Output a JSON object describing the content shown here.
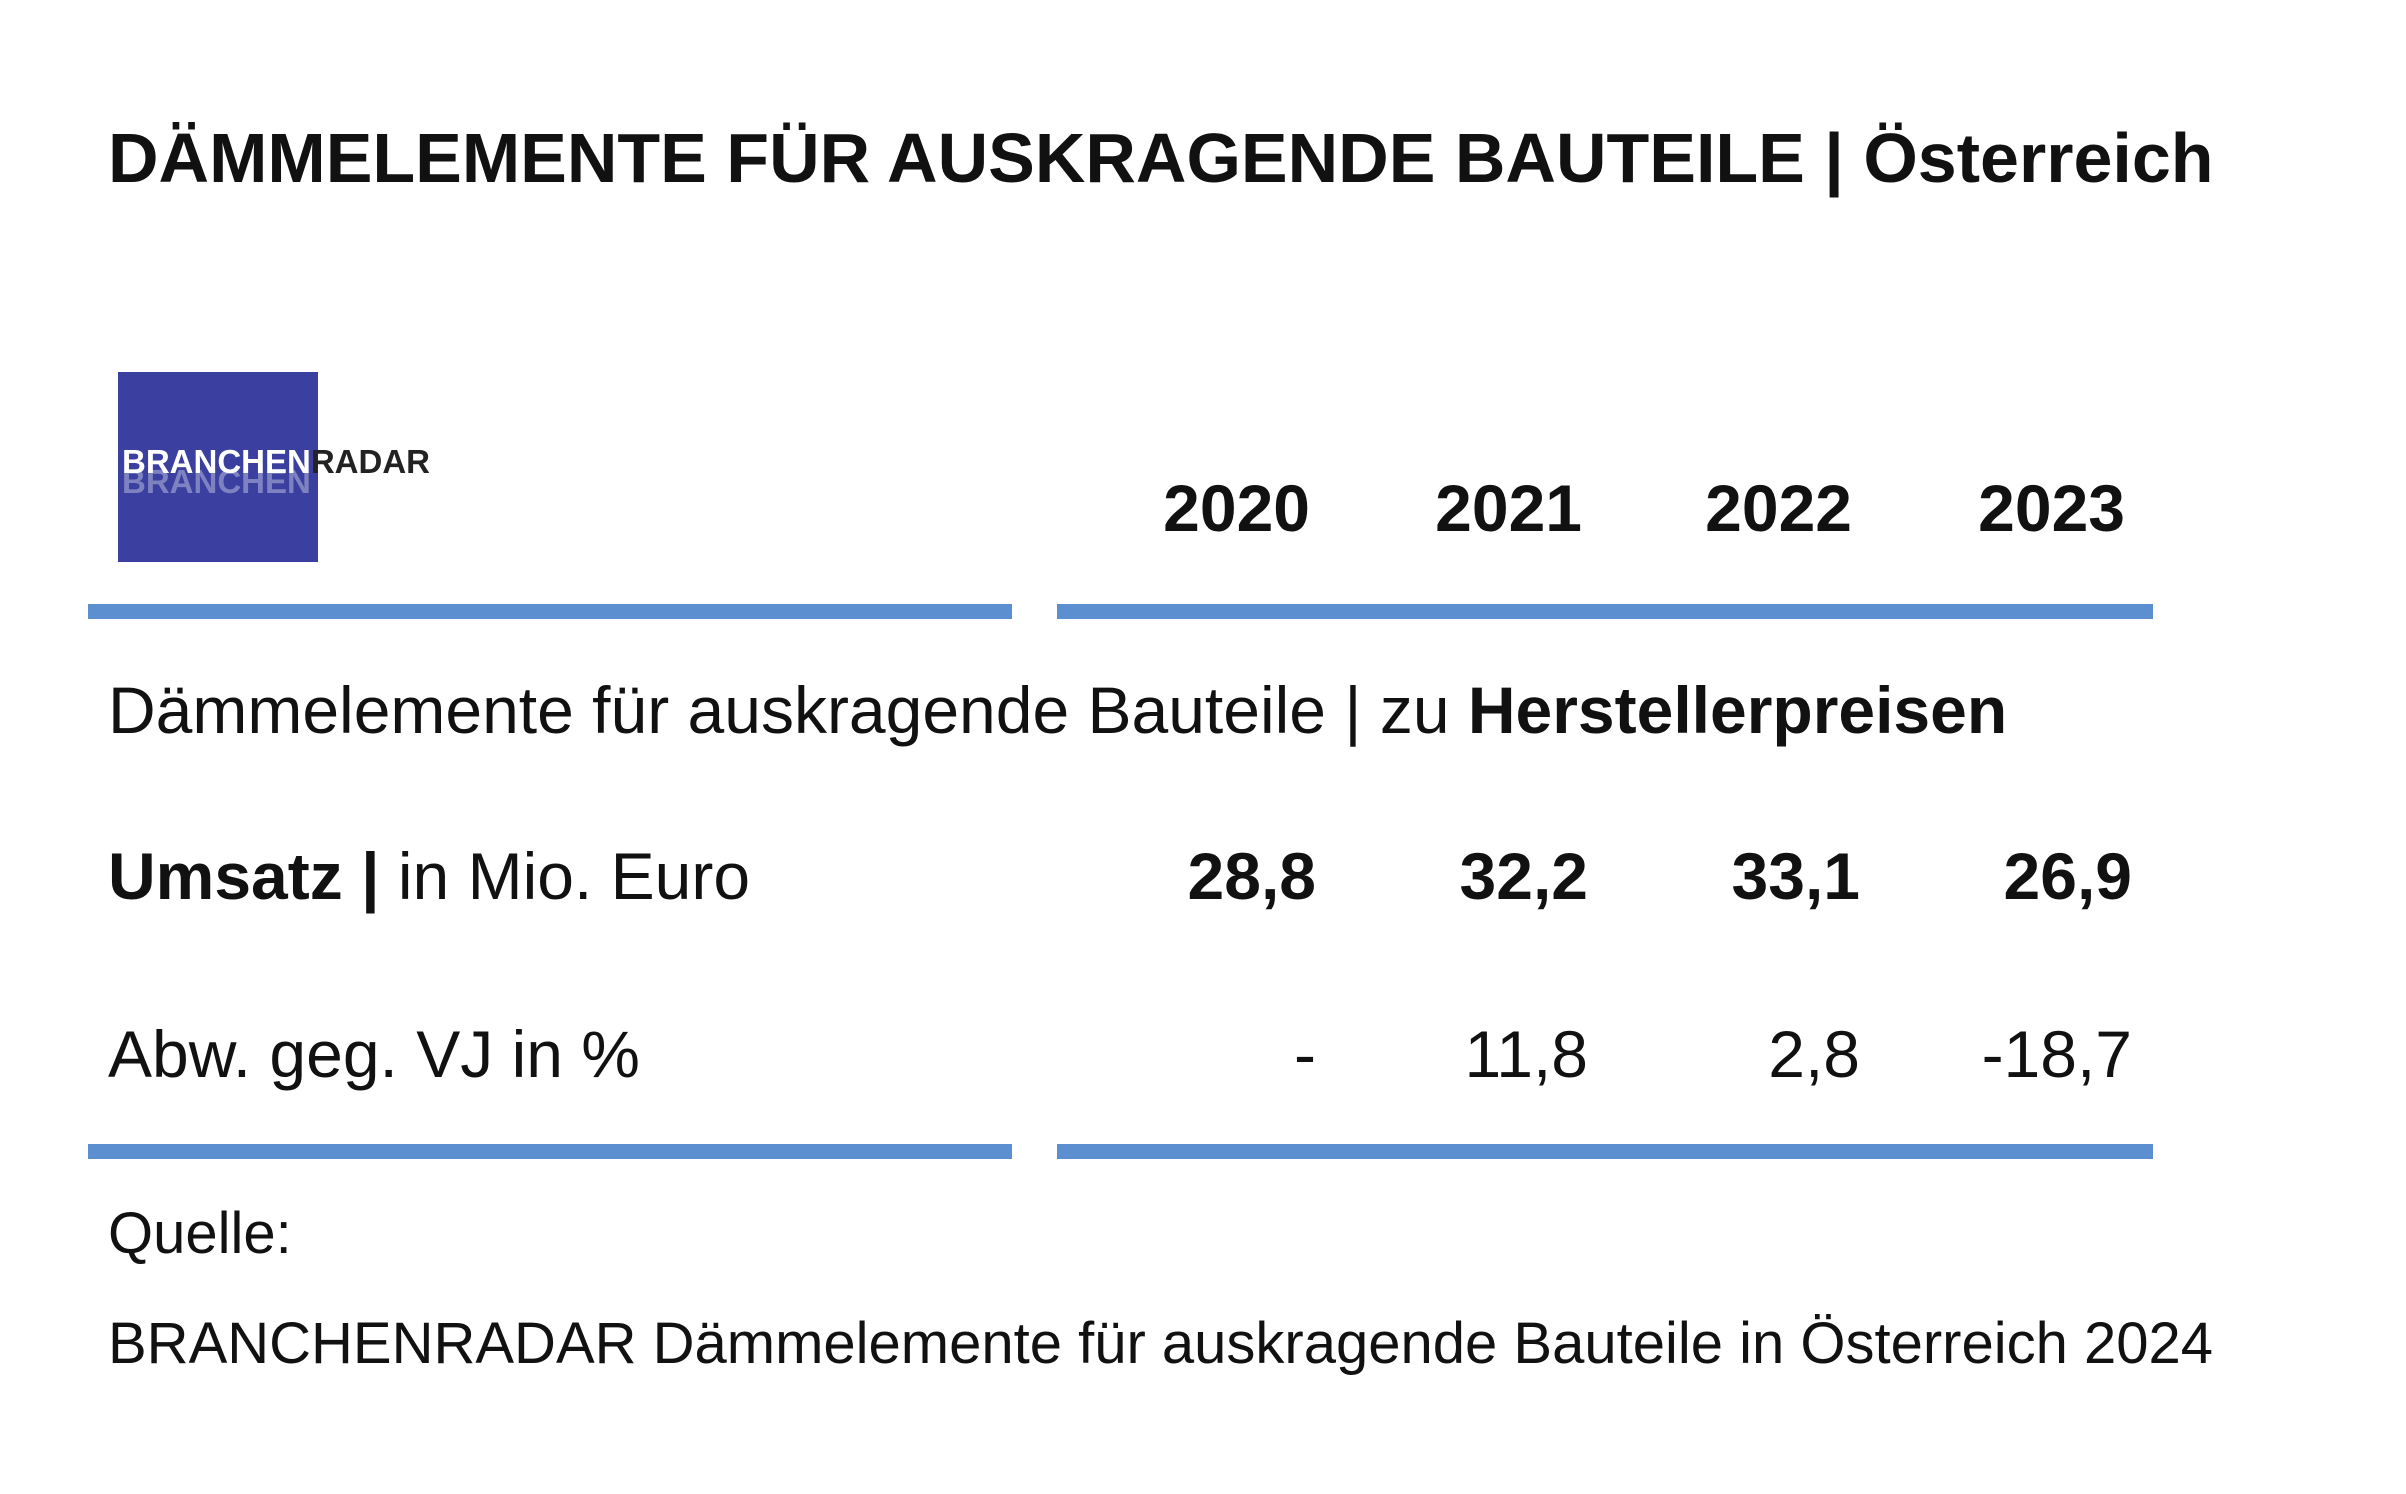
{
  "title": {
    "main": "DÄMMELEMENTE FÜR AUSKRAGENDE BAUTEILE | ",
    "country": "Österreich"
  },
  "logo": {
    "part1": "BRANCHEN",
    "part2": "RADAR",
    "background_color": "#3a3fa0"
  },
  "accent_color": "#5b8fd0",
  "table": {
    "years": [
      "2020",
      "2021",
      "2022",
      "2023"
    ],
    "subtitle_regular": "Dämmelemente für auskragende Bauteile | zu ",
    "subtitle_bold": "Herstellerpreisen",
    "rows": [
      {
        "label_bold": "Umsatz | ",
        "label_regular": "in Mio. Euro",
        "values": [
          "28,8",
          "32,2",
          "33,1",
          "26,9"
        ]
      },
      {
        "label_bold": "",
        "label_regular": "Abw. geg. VJ in %",
        "values": [
          "-",
          "11,8",
          "2,8",
          "-18,7"
        ]
      }
    ]
  },
  "source": {
    "label": "Quelle:",
    "text": "BRANCHENRADAR Dämmelemente für auskragende Bauteile in Österreich 2024"
  }
}
